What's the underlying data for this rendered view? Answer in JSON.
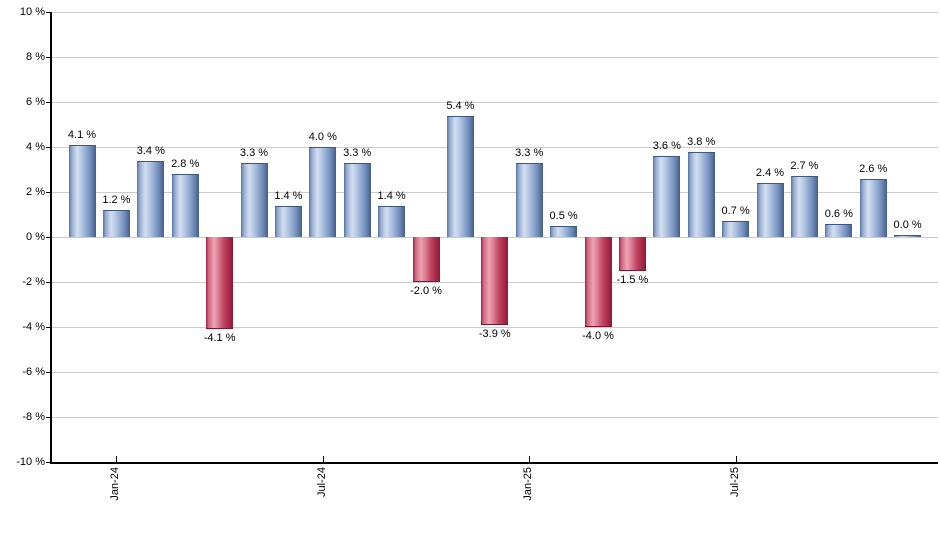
{
  "chart_data": {
    "type": "bar",
    "title": "",
    "xlabel": "",
    "ylabel": "",
    "ylim": [
      -10,
      10
    ],
    "ytick_step": 2,
    "ytick_suffix": " %",
    "grid": true,
    "legend_position": "none",
    "bars": [
      {
        "value": 4.1,
        "label": "4.1 %"
      },
      {
        "value": 1.2,
        "label": "1.2 %"
      },
      {
        "value": 3.4,
        "label": "3.4 %"
      },
      {
        "value": 2.8,
        "label": "2.8 %"
      },
      {
        "value": -4.1,
        "label": "-4.1 %"
      },
      {
        "value": 3.3,
        "label": "3.3 %"
      },
      {
        "value": 1.4,
        "label": "1.4 %"
      },
      {
        "value": 4.0,
        "label": "4.0 %"
      },
      {
        "value": 3.3,
        "label": "3.3 %"
      },
      {
        "value": 1.4,
        "label": "1.4 %"
      },
      {
        "value": -2.0,
        "label": "-2.0 %"
      },
      {
        "value": 5.4,
        "label": "5.4 %"
      },
      {
        "value": -3.9,
        "label": "-3.9 %"
      },
      {
        "value": 3.3,
        "label": "3.3 %"
      },
      {
        "value": 0.5,
        "label": "0.5 %"
      },
      {
        "value": -4.0,
        "label": "-4.0 %"
      },
      {
        "value": -1.5,
        "label": "-1.5 %"
      },
      {
        "value": 3.6,
        "label": "3.6 %"
      },
      {
        "value": 3.8,
        "label": "3.8 %"
      },
      {
        "value": 0.7,
        "label": "0.7 %"
      },
      {
        "value": 2.4,
        "label": "2.4 %"
      },
      {
        "value": 2.7,
        "label": "2.7 %"
      },
      {
        "value": 0.6,
        "label": "0.6 %"
      },
      {
        "value": 2.6,
        "label": "2.6 %"
      },
      {
        "value": 0.0,
        "label": "0.0 %"
      }
    ],
    "x_ticks": [
      {
        "index": 1,
        "label": "Jan-24"
      },
      {
        "index": 7,
        "label": "Jul-24"
      },
      {
        "index": 13,
        "label": "Jan-25"
      },
      {
        "index": 19,
        "label": "Jul-25"
      }
    ],
    "colors": {
      "positive_bar": "#7d99c8",
      "positive_highlight": "#d3dff0",
      "positive_edge": "#425d88",
      "negative_bar": "#c44763",
      "negative_highlight": "#eda4b4",
      "negative_edge": "#8c1b38",
      "gridline": "#cccccc",
      "axis": "#000000",
      "text": "#000000",
      "background": "#ffffff"
    }
  }
}
